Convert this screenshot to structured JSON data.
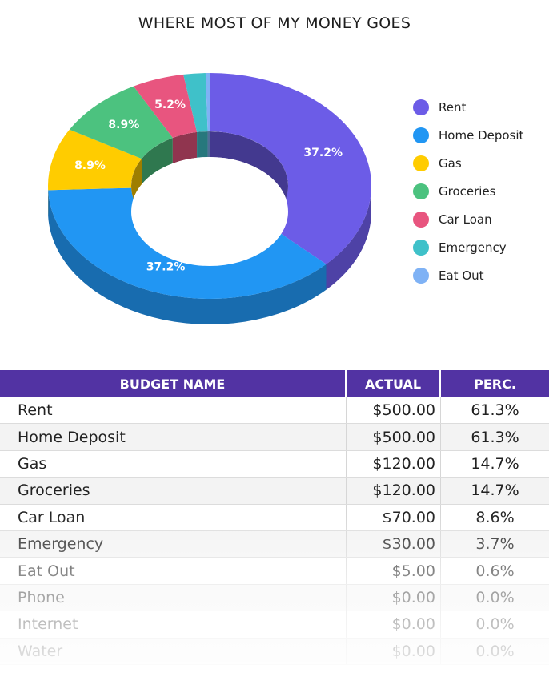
{
  "title": "WHERE MOST OF MY MONEY GOES",
  "chart_data": {
    "type": "pie",
    "title": "WHERE MOST OF MY MONEY GOES",
    "donut": true,
    "three_d": true,
    "legend_placement": "right",
    "categories": [
      "Rent",
      "Home Deposit",
      "Gas",
      "Groceries",
      "Car Loan",
      "Emergency",
      "Eat Out"
    ],
    "values": [
      37.2,
      37.2,
      8.9,
      8.9,
      5.2,
      2.2,
      0.4
    ],
    "data_labels": [
      "37.2%",
      "37.2%",
      "8.9%",
      "8.9%",
      "5.2%",
      "",
      ""
    ],
    "colors": [
      "#6c5ce7",
      "#2196f3",
      "#ffcc00",
      "#4cc27f",
      "#e8557f",
      "#3fc1c9",
      "#7fb2f5"
    ]
  },
  "table": {
    "headers": [
      "BUDGET NAME",
      "ACTUAL",
      "PERC."
    ],
    "rows": [
      {
        "name": "Rent",
        "actual": "$500.00",
        "perc": "61.3%"
      },
      {
        "name": "Home Deposit",
        "actual": "$500.00",
        "perc": "61.3%"
      },
      {
        "name": "Gas",
        "actual": "$120.00",
        "perc": "14.7%"
      },
      {
        "name": "Groceries",
        "actual": "$120.00",
        "perc": "14.7%"
      },
      {
        "name": "Car Loan",
        "actual": "$70.00",
        "perc": "8.6%"
      },
      {
        "name": "Emergency",
        "actual": "$30.00",
        "perc": "3.7%"
      },
      {
        "name": "Eat Out",
        "actual": "$5.00",
        "perc": "0.6%"
      },
      {
        "name": "Phone",
        "actual": "$0.00",
        "perc": "0.0%"
      },
      {
        "name": "Internet",
        "actual": "$0.00",
        "perc": "0.0%"
      },
      {
        "name": "Water",
        "actual": "$0.00",
        "perc": "0.0%"
      }
    ]
  }
}
